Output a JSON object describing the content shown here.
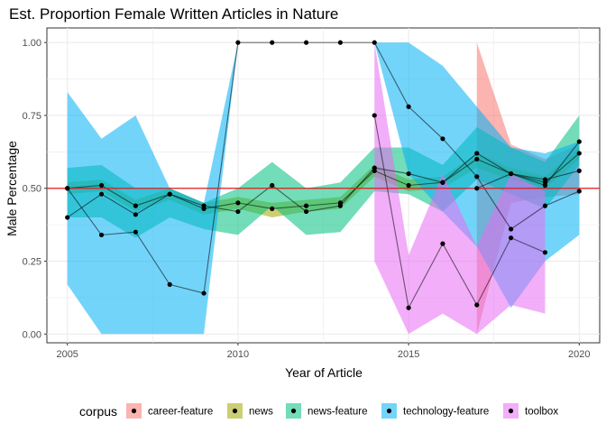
{
  "chart_data": {
    "type": "line",
    "title": "Est. Proportion Female Written Articles in Nature",
    "xlabel": "Year of Article",
    "ylabel": "Male Percentage",
    "xlim": [
      2004.4,
      2020.6
    ],
    "ylim": [
      -0.03,
      1.05
    ],
    "xticks": [
      2005,
      2010,
      2015,
      2020
    ],
    "yticks": [
      0.0,
      0.25,
      0.5,
      0.75,
      1.0
    ],
    "ytick_labels": [
      "0.00",
      "0.25",
      "0.50",
      "0.75",
      "1.00"
    ],
    "grid": true,
    "reference_line": {
      "y": 0.5,
      "color": "#e41a1c"
    },
    "legend": {
      "title": "corpus",
      "position": "bottom"
    },
    "series": [
      {
        "name": "career-feature",
        "color": "#F8766D",
        "points": [
          {
            "x": 2017,
            "y": 0.5,
            "lo": 0.0,
            "hi": 1.0
          },
          {
            "x": 2018,
            "y": 0.55,
            "lo": 0.45,
            "hi": 0.65
          },
          {
            "x": 2019,
            "y": 0.53,
            "lo": 0.47,
            "hi": 0.6
          },
          {
            "x": 2020,
            "y": 0.56,
            "lo": 0.48,
            "hi": 0.65
          }
        ]
      },
      {
        "name": "news",
        "color": "#A3A500",
        "points": [
          {
            "x": 2005,
            "y": 0.5,
            "lo": 0.48,
            "hi": 0.52
          },
          {
            "x": 2006,
            "y": 0.51,
            "lo": 0.49,
            "hi": 0.53
          },
          {
            "x": 2007,
            "y": 0.44,
            "lo": 0.42,
            "hi": 0.46
          },
          {
            "x": 2008,
            "y": 0.48,
            "lo": 0.46,
            "hi": 0.5
          },
          {
            "x": 2009,
            "y": 0.43,
            "lo": 0.41,
            "hi": 0.45
          },
          {
            "x": 2010,
            "y": 0.45,
            "lo": 0.43,
            "hi": 0.47
          },
          {
            "x": 2011,
            "y": 0.43,
            "lo": 0.4,
            "hi": 0.45
          },
          {
            "x": 2012,
            "y": 0.44,
            "lo": 0.42,
            "hi": 0.46
          },
          {
            "x": 2013,
            "y": 0.45,
            "lo": 0.43,
            "hi": 0.47
          },
          {
            "x": 2014,
            "y": 0.56,
            "lo": 0.54,
            "hi": 0.58
          },
          {
            "x": 2015,
            "y": 0.51,
            "lo": 0.49,
            "hi": 0.53
          },
          {
            "x": 2016,
            "y": 0.52,
            "lo": 0.5,
            "hi": 0.54
          },
          {
            "x": 2017,
            "y": 0.6,
            "lo": 0.57,
            "hi": 0.62
          },
          {
            "x": 2018,
            "y": 0.55,
            "lo": 0.53,
            "hi": 0.57
          },
          {
            "x": 2019,
            "y": 0.52,
            "lo": 0.5,
            "hi": 0.54
          },
          {
            "x": 2020,
            "y": 0.62,
            "lo": 0.6,
            "hi": 0.64
          }
        ]
      },
      {
        "name": "news-feature",
        "color": "#00BF7D",
        "points": [
          {
            "x": 2005,
            "y": 0.4,
            "lo": 0.4,
            "hi": 0.57
          },
          {
            "x": 2006,
            "y": 0.48,
            "lo": 0.4,
            "hi": 0.58
          },
          {
            "x": 2007,
            "y": 0.41,
            "lo": 0.33,
            "hi": 0.5
          },
          {
            "x": 2008,
            "y": 0.48,
            "lo": 0.4,
            "hi": 0.5
          },
          {
            "x": 2009,
            "y": 0.44,
            "lo": 0.36,
            "hi": 0.45
          },
          {
            "x": 2010,
            "y": 0.42,
            "lo": 0.34,
            "hi": 0.5
          },
          {
            "x": 2011,
            "y": 0.51,
            "lo": 0.44,
            "hi": 0.59
          },
          {
            "x": 2012,
            "y": 0.42,
            "lo": 0.34,
            "hi": 0.5
          },
          {
            "x": 2013,
            "y": 0.44,
            "lo": 0.35,
            "hi": 0.52
          },
          {
            "x": 2014,
            "y": 0.57,
            "lo": 0.49,
            "hi": 0.64
          },
          {
            "x": 2015,
            "y": 0.55,
            "lo": 0.48,
            "hi": 0.64
          },
          {
            "x": 2016,
            "y": 0.52,
            "lo": 0.42,
            "hi": 0.58
          },
          {
            "x": 2017,
            "y": 0.62,
            "lo": 0.53,
            "hi": 0.71
          },
          {
            "x": 2018,
            "y": 0.55,
            "lo": 0.48,
            "hi": 0.64
          },
          {
            "x": 2019,
            "y": 0.51,
            "lo": 0.43,
            "hi": 0.59
          },
          {
            "x": 2020,
            "y": 0.66,
            "lo": 0.58,
            "hi": 0.75
          }
        ]
      },
      {
        "name": "technology-feature",
        "color": "#00B0F6",
        "points": [
          {
            "x": 2005,
            "y": 0.5,
            "lo": 0.17,
            "hi": 0.83
          },
          {
            "x": 2006,
            "y": 0.34,
            "lo": 0.0,
            "hi": 0.67
          },
          {
            "x": 2007,
            "y": 0.35,
            "lo": 0.0,
            "hi": 0.75
          },
          {
            "x": 2008,
            "y": 0.17,
            "lo": 0.0,
            "hi": 0.5
          },
          {
            "x": 2009,
            "y": 0.14,
            "lo": 0.0,
            "hi": 0.45
          },
          {
            "x": 2010,
            "y": 1.0,
            "lo": 1.0,
            "hi": 1.0
          },
          {
            "x": 2011,
            "y": 1.0,
            "lo": 1.0,
            "hi": 1.0
          },
          {
            "x": 2012,
            "y": 1.0,
            "lo": 1.0,
            "hi": 1.0
          },
          {
            "x": 2013,
            "y": 1.0,
            "lo": 1.0,
            "hi": 1.0
          },
          {
            "x": 2014,
            "y": 1.0,
            "lo": 1.0,
            "hi": 1.0
          },
          {
            "x": 2015,
            "y": 0.78,
            "lo": 0.55,
            "hi": 1.0
          },
          {
            "x": 2016,
            "y": 0.67,
            "lo": 0.42,
            "hi": 0.92
          },
          {
            "x": 2017,
            "y": 0.54,
            "lo": 0.3,
            "hi": 0.78
          },
          {
            "x": 2018,
            "y": 0.36,
            "lo": 0.09,
            "hi": 0.64
          },
          {
            "x": 2019,
            "y": 0.44,
            "lo": 0.25,
            "hi": 0.62
          },
          {
            "x": 2020,
            "y": 0.49,
            "lo": 0.34,
            "hi": 0.66
          }
        ]
      },
      {
        "name": "toolbox",
        "color": "#E76BF3",
        "points": [
          {
            "x": 2014,
            "y": 0.75,
            "lo": 0.25,
            "hi": 1.0
          },
          {
            "x": 2015,
            "y": 0.09,
            "lo": 0.0,
            "hi": 0.27
          },
          {
            "x": 2016,
            "y": 0.31,
            "lo": 0.07,
            "hi": 0.55
          },
          {
            "x": 2017,
            "y": 0.1,
            "lo": 0.0,
            "hi": 0.3
          },
          {
            "x": 2018,
            "y": 0.33,
            "lo": 0.1,
            "hi": 0.55
          },
          {
            "x": 2019,
            "y": 0.28,
            "lo": 0.07,
            "hi": 0.49
          }
        ]
      }
    ]
  }
}
